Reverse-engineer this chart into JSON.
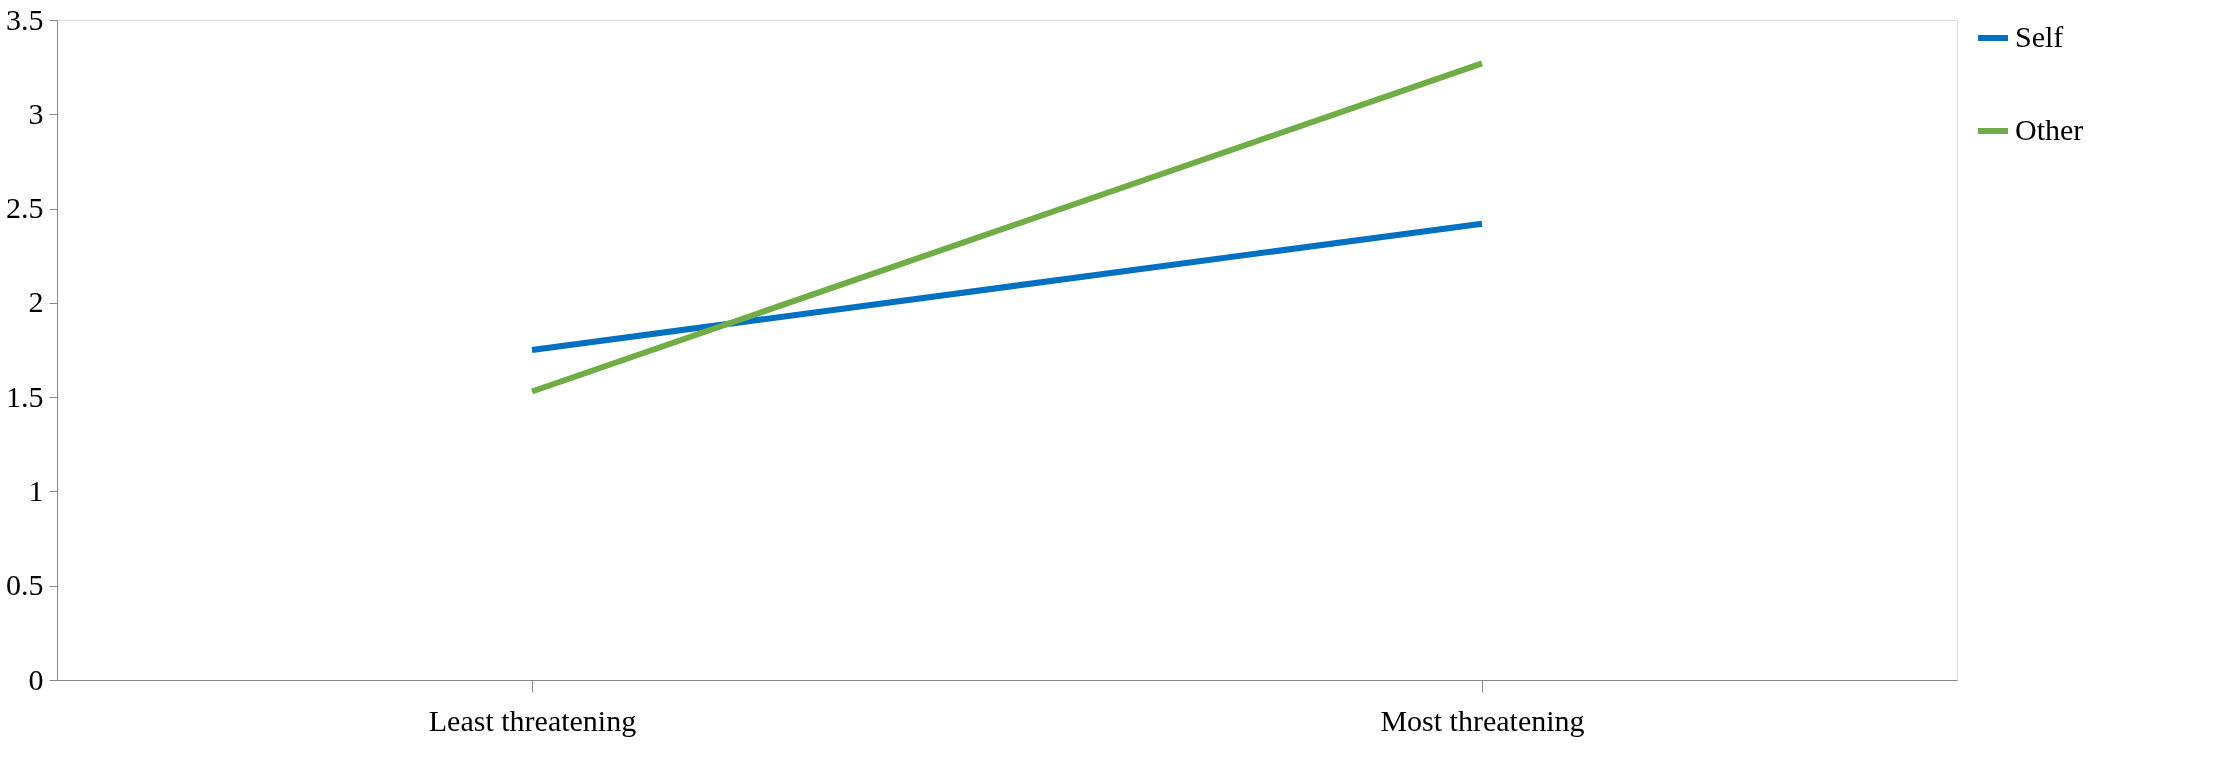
{
  "chart_data": {
    "type": "line",
    "categories": [
      "Least threatening",
      "Most threatening"
    ],
    "series": [
      {
        "name": "Self",
        "color": "#0070c0",
        "values": [
          1.75,
          2.42
        ]
      },
      {
        "name": "Other",
        "color": "#70ad47",
        "values": [
          1.53,
          3.27
        ]
      }
    ],
    "ylim": [
      0,
      3.5
    ],
    "yticks": [
      0,
      0.5,
      1,
      1.5,
      2,
      2.5,
      3,
      3.5
    ],
    "grid": false,
    "legend": "right",
    "marker": "none",
    "line_style": "solid"
  }
}
